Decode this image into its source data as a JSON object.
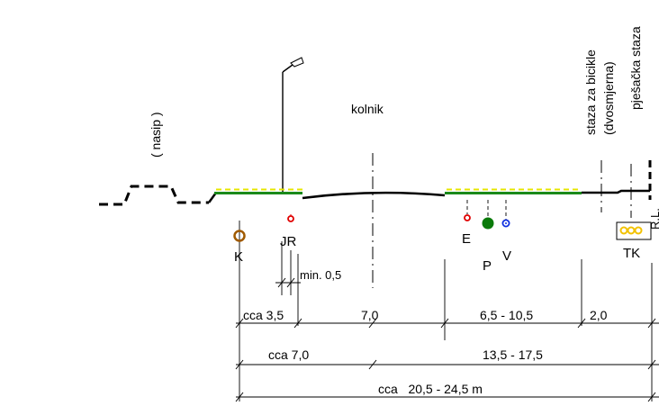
{
  "labels": {
    "nasip": "( nasip )",
    "kolnik": "kolnik",
    "bike_path": "staza za bicikle",
    "bike_direction": "(dvosmjerna)",
    "pedestrian_path": "pješačka staza",
    "boundary_mark": "R.L."
  },
  "utilities": {
    "K": "K",
    "JR": "JR",
    "E": "E",
    "P": "P",
    "V": "V",
    "TK": "TK"
  },
  "dimensions": {
    "min": "min. 0,5",
    "row1": {
      "a": "cca 3,5",
      "b": "7,0",
      "c": "6,5 - 10,5",
      "d": "2,0"
    },
    "row2": {
      "a": "cca 7,0",
      "b": "13,5 - 17,5"
    },
    "row3": {
      "total": "cca   20,5 - 24,5 m"
    }
  },
  "colors": {
    "green_strip": "#1a8a1a",
    "yellow_hatch": "#e6e600",
    "K": "#a05a00",
    "JR": "#e00000",
    "E": "#e00000",
    "P": "#0a7a0a",
    "V": "#1030e0",
    "TK": "#f2c200"
  }
}
